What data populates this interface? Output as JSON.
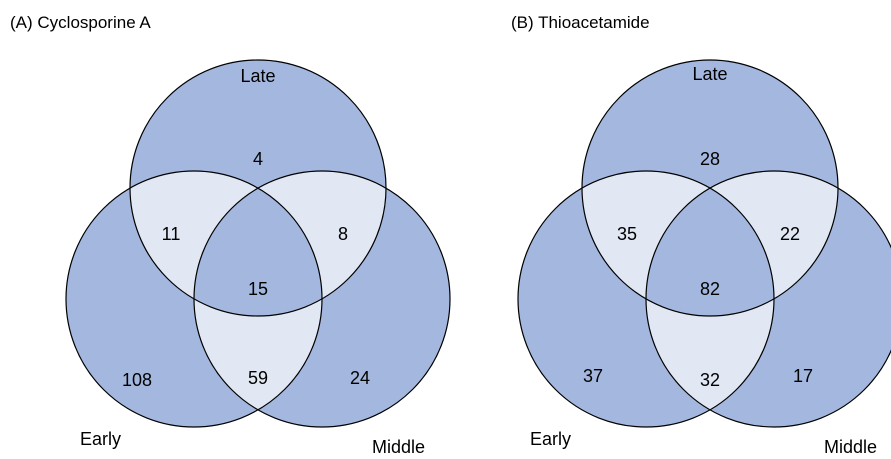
{
  "panels": [
    {
      "title": "(A) Cyclosporine A",
      "sets": {
        "late": "Late",
        "early": "Early",
        "middle": "Middle"
      },
      "regions": {
        "late_only": 4,
        "early_late": 11,
        "late_middle": 8,
        "all": 15,
        "early_only": 108,
        "early_middle": 59,
        "middle_only": 24
      }
    },
    {
      "title": "(B) Thioacetamide",
      "sets": {
        "late": "Late",
        "early": "Early",
        "middle": "Middle"
      },
      "regions": {
        "late_only": 28,
        "early_late": 35,
        "late_middle": 22,
        "all": 82,
        "early_only": 37,
        "early_middle": 32,
        "middle_only": 17
      }
    }
  ]
}
